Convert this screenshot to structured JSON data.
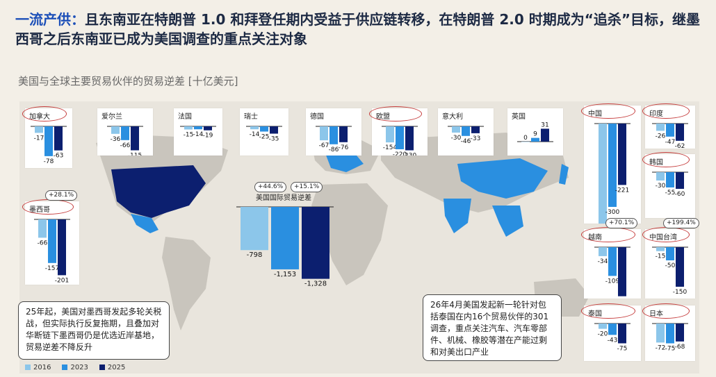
{
  "headline": {
    "lead": "一流产供：",
    "text": "且东南亚在特朗普 1.0 和拜登任期内受益于供应链转移，在特朗普 2.0 时期成为“追杀”目标，继墨西哥之后东南亚已成为美国调查的重点关注对象"
  },
  "subtitle": "美国与全球主要贸易伙伴的贸易逆差 [十亿美元]",
  "colors": {
    "y2016": "#8cc6ea",
    "y2023": "#2a8fe0",
    "y2025": "#0c1f6f",
    "highlight_ring": "#c53b3b"
  },
  "legend": [
    "2016",
    "2023",
    "2025"
  ],
  "notes": {
    "mexico": "25年起，美国对墨西哥发起多轮关税战，但实际执行反复拖期，且叠加对华断链下墨西哥仍是优选近岸基地，贸易逆差不降反升",
    "thailand": "26年4月美国发起新一轮针对包括泰国在内16个贸易伙伴的301调查，重点关注汽车、汽车零部件、机械、橡胶等潜在产能过剩和对美出口产业"
  },
  "chart_data": [
    {
      "type": "bar",
      "title": "加拿大",
      "categories": [
        "2016",
        "2023",
        "2025"
      ],
      "values": [
        -17,
        -78,
        -63
      ],
      "highlighted": true
    },
    {
      "type": "bar",
      "title": "爱尔兰",
      "categories": [
        "2016",
        "2023",
        "2025"
      ],
      "values": [
        -36,
        -66,
        -115
      ]
    },
    {
      "type": "bar",
      "title": "法国",
      "categories": [
        "2016",
        "2023",
        "2025"
      ],
      "values": [
        -15,
        -14,
        -19
      ]
    },
    {
      "type": "bar",
      "title": "瑞士",
      "categories": [
        "2016",
        "2023",
        "2025"
      ],
      "values": [
        -14,
        -25,
        -35
      ]
    },
    {
      "type": "bar",
      "title": "德国",
      "categories": [
        "2016",
        "2023",
        "2025"
      ],
      "values": [
        -67,
        -86,
        -76
      ]
    },
    {
      "type": "bar",
      "title": "欧盟",
      "categories": [
        "2016",
        "2023",
        "2025"
      ],
      "values": [
        -154,
        -220,
        -230
      ],
      "highlighted": true
    },
    {
      "type": "bar",
      "title": "意大利",
      "categories": [
        "2016",
        "2023",
        "2025"
      ],
      "values": [
        -30,
        -46,
        -33
      ]
    },
    {
      "type": "bar",
      "title": "英国",
      "categories": [
        "2016",
        "2023",
        "2025"
      ],
      "values": [
        0,
        9,
        31
      ]
    },
    {
      "type": "bar",
      "title": "中国",
      "categories": [
        "2016",
        "2023",
        "2025"
      ],
      "values": [
        -366,
        -300,
        -221
      ],
      "highlighted": true
    },
    {
      "type": "bar",
      "title": "印度",
      "categories": [
        "2016",
        "2023",
        "2025"
      ],
      "values": [
        -26,
        -47,
        -62
      ],
      "highlighted": true
    },
    {
      "type": "bar",
      "title": "韩国",
      "categories": [
        "2016",
        "2023",
        "2025"
      ],
      "values": [
        -30,
        -55,
        -60
      ],
      "highlighted": true
    },
    {
      "type": "bar",
      "title": "墨西哥",
      "categories": [
        "2016",
        "2023",
        "2025"
      ],
      "values": [
        -66,
        -157,
        -201
      ],
      "highlighted": true,
      "badge": "+28.1%"
    },
    {
      "type": "bar",
      "title": "美国国际贸易逆差",
      "categories": [
        "2016",
        "2023",
        "2025"
      ],
      "values": [
        -798,
        -1153,
        -1328
      ],
      "badges": [
        "+44.6%",
        "+15.1%"
      ]
    },
    {
      "type": "bar",
      "title": "越南",
      "categories": [
        "2016",
        "2023",
        "2025"
      ],
      "values": [
        -34,
        -109,
        -186
      ],
      "highlighted": true,
      "badge": "+70.1%"
    },
    {
      "type": "bar",
      "title": "中国台湾",
      "categories": [
        "2016",
        "2023",
        "2025"
      ],
      "values": [
        -15,
        -50,
        -150
      ],
      "highlighted": true,
      "badge": "+199.4%"
    },
    {
      "type": "bar",
      "title": "泰国",
      "categories": [
        "2016",
        "2023",
        "2025"
      ],
      "values": [
        -20,
        -43,
        -75
      ],
      "highlighted": true
    },
    {
      "type": "bar",
      "title": "日本",
      "categories": [
        "2016",
        "2023",
        "2025"
      ],
      "values": [
        -72,
        -75,
        -68
      ],
      "highlighted": true
    }
  ]
}
